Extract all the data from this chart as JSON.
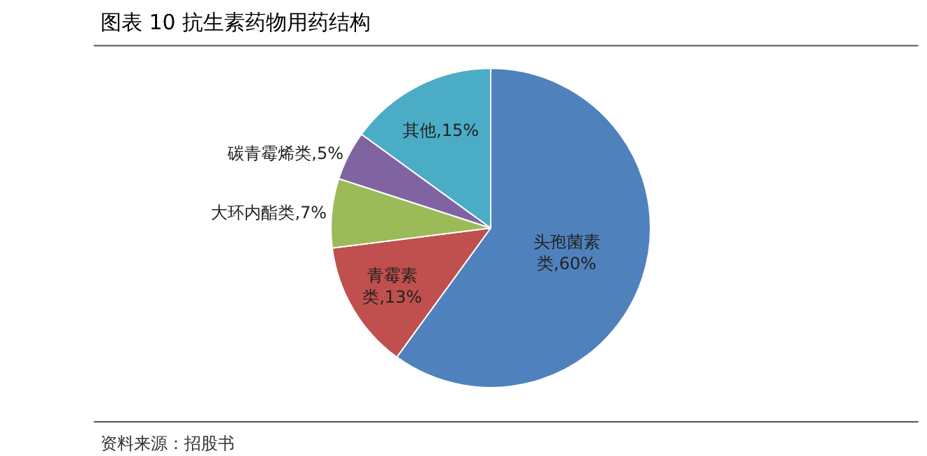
{
  "chart_data": {
    "type": "pie",
    "title": "图表 10 抗生素药物用药结构",
    "categories": [
      "头孢菌素类",
      "青霉素类",
      "大环内酯类",
      "碳青霉烯类",
      "其他"
    ],
    "values": [
      60,
      13,
      7,
      5,
      15
    ],
    "value_labels": [
      "60%",
      "13%",
      "7%",
      "5%",
      "15%"
    ],
    "colors": [
      "#4f81bd",
      "#c0504d",
      "#9bbb59",
      "#8064a2",
      "#4bacc6"
    ],
    "legend": false,
    "annotations": [
      "资料来源：招股书"
    ]
  }
}
